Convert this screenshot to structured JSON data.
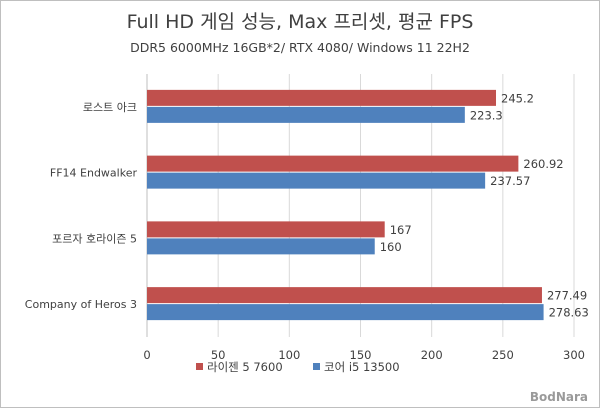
{
  "chart_data": {
    "type": "bar",
    "orientation": "horizontal",
    "title": "Full HD 게임 성능, Max 프리셋, 평균 FPS",
    "subtitle": "DDR5 6000MHz 16GB*2/ RTX 4080/ Windows 11 22H2",
    "categories": [
      "로스트 아크",
      "FF14 Endwalker",
      "포르자 호라이즌 5",
      "Company of Heros 3"
    ],
    "series": [
      {
        "name": "라이젠 5 7600",
        "values": [
          245.2,
          260.92,
          167,
          277.49
        ],
        "labels": [
          "245.2",
          "260.92",
          "167",
          "277.49"
        ],
        "color": "#c0504d"
      },
      {
        "name": "코어 i5 13500",
        "values": [
          223.3,
          237.57,
          160,
          278.63
        ],
        "labels": [
          "223.3",
          "237.57",
          "160",
          "278.63"
        ],
        "color": "#4f81bd"
      }
    ],
    "xlim": [
      0,
      300
    ],
    "xticks": [
      0,
      50,
      100,
      150,
      200,
      250,
      300
    ],
    "xtick_labels": [
      "0",
      "50",
      "100",
      "150",
      "200",
      "250",
      "300"
    ],
    "grid": true,
    "legend_position": "bottom"
  },
  "watermark": "BodNara",
  "colors": {
    "grid": "#d9d9d9",
    "axis": "#bfbfbf",
    "text": "#404040"
  }
}
